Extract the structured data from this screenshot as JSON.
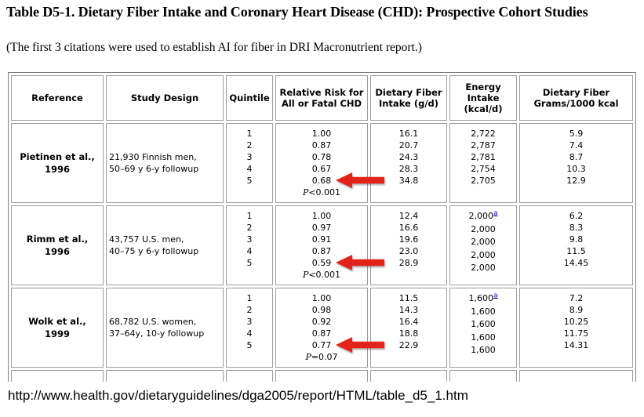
{
  "page": {
    "title": "Table D5-1. Dietary Fiber Intake and Coronary Heart Disease (CHD): Prospective Cohort Studies",
    "subtitle": "(The first 3 citations were used to establish AI for fiber in DRI Macronutrient report.)",
    "source_url": "http://www.health.gov/dietaryguidelines/dga2005/report/HTML/table_d5_1.htm"
  },
  "table": {
    "headers": [
      "Reference",
      "Study Design",
      "Quintile",
      "Relative Risk for All or Fatal CHD",
      "Dietary Fiber Intake (g/d)",
      "Energy Intake (kcal/d)",
      "Dietary Fiber Grams/1000 kcal"
    ],
    "rows": [
      {
        "reference_lines": [
          "Pietinen et al.,",
          "1996"
        ],
        "study_design_lines": [
          "21,930 Finnish men,",
          "50–69 y 6-y followup"
        ],
        "quintiles": [
          "1",
          "2",
          "3",
          "4",
          "5"
        ],
        "relative_risk": [
          "1.00",
          "0.87",
          "0.78",
          "0.67",
          "0.68"
        ],
        "p_symbol": "P",
        "p_value": "<0.001",
        "fiber_intake": [
          "16.1",
          "20.7",
          "24.3",
          "28.3",
          "34.8"
        ],
        "energy_intake": [
          "2,722",
          "2,787",
          "2,781",
          "2,754",
          "2,705"
        ],
        "energy_footnote_marker": "",
        "fiber_per_1000": [
          "5.9",
          "7.4",
          "8.7",
          "10.3",
          "12.9"
        ]
      },
      {
        "reference_lines": [
          "Rimm et al.,",
          "1996"
        ],
        "study_design_lines": [
          "43,757 U.S. men,",
          "40–75 y 6-y followup"
        ],
        "quintiles": [
          "1",
          "2",
          "3",
          "4",
          "5"
        ],
        "relative_risk": [
          "1.00",
          "0.97",
          "0.91",
          "0.87",
          "0.59"
        ],
        "p_symbol": "P",
        "p_value": "<0.001",
        "fiber_intake": [
          "12.4",
          "16.6",
          "19.6",
          "23.0",
          "28.9"
        ],
        "energy_intake": [
          "2,000",
          "2,000",
          "2,000",
          "2,000",
          "2,000"
        ],
        "energy_footnote_marker": "a",
        "fiber_per_1000": [
          "6.2",
          "8.3",
          "9.8",
          "11.5",
          "14.45"
        ]
      },
      {
        "reference_lines": [
          "Wolk et al.,",
          "1999"
        ],
        "study_design_lines": [
          "68,782 U.S. women,",
          "37–64y, 10-y followup"
        ],
        "quintiles": [
          "1",
          "2",
          "3",
          "4",
          "5"
        ],
        "relative_risk": [
          "1.00",
          "0.98",
          "0.92",
          "0.87",
          "0.77"
        ],
        "p_symbol": "P",
        "p_value": "=0.07",
        "fiber_intake": [
          "11.5",
          "14.3",
          "16.4",
          "18.8",
          "22.9"
        ],
        "energy_intake": [
          "1,600",
          "1,600",
          "1,600",
          "1,600",
          "1,600"
        ],
        "energy_footnote_marker": "a",
        "fiber_per_1000": [
          "7.2",
          "8.9",
          "10.25",
          "11.75",
          "14.31"
        ]
      }
    ]
  },
  "annotations": {
    "arrow_color": "#e2231a",
    "arrows": [
      {
        "points_to_value": "0.68",
        "row": "Pietinen et al., 1996",
        "column": "Relative Risk for All or Fatal CHD",
        "quintile": "5"
      },
      {
        "points_to_value": "0.59",
        "row": "Rimm et al., 1996",
        "column": "Relative Risk for All or Fatal CHD",
        "quintile": "5"
      },
      {
        "points_to_value": "0.77",
        "row": "Wolk et al., 1999",
        "column": "Relative Risk for All or Fatal CHD",
        "quintile": "5"
      }
    ]
  }
}
